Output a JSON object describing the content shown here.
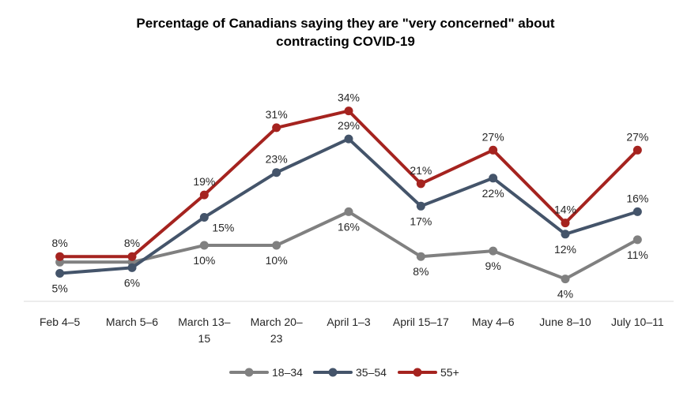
{
  "chart_data": {
    "type": "line",
    "title_lines": [
      "Percentage of Canadians saying they are \"very concerned\" about",
      "contracting COVID-19"
    ],
    "categories": [
      [
        "Feb 4–5"
      ],
      [
        "March 5–6"
      ],
      [
        "March 13–",
        "15"
      ],
      [
        "March 20–",
        "23"
      ],
      [
        "April 1–3"
      ],
      [
        "April 15–17"
      ],
      [
        "May 4–6"
      ],
      [
        "June 8–10"
      ],
      [
        "July 10–11"
      ]
    ],
    "series": [
      {
        "name": "18–34",
        "color": "#808080",
        "values": [
          7,
          7,
          10,
          10,
          16,
          8,
          9,
          4,
          11
        ],
        "labels": [
          "",
          "",
          "10%",
          "10%",
          "16%",
          "8%",
          "9%",
          "4%",
          "11%"
        ]
      },
      {
        "name": "35–54",
        "color": "#44546A",
        "values": [
          5,
          6,
          15,
          23,
          29,
          17,
          22,
          12,
          16
        ],
        "labels": [
          "5%",
          "6%",
          "15%",
          "23%",
          "29%",
          "17%",
          "22%",
          "12%",
          "16%"
        ]
      },
      {
        "name": "55+",
        "color": "#A5231F",
        "values": [
          8,
          8,
          19,
          31,
          34,
          21,
          27,
          14,
          27
        ],
        "labels": [
          "8%",
          "8%",
          "19%",
          "31%",
          "34%",
          "21%",
          "27%",
          "14%",
          "27%"
        ]
      }
    ],
    "ylim": [
      0,
      40
    ],
    "grid": false,
    "legend_position": "bottom"
  }
}
